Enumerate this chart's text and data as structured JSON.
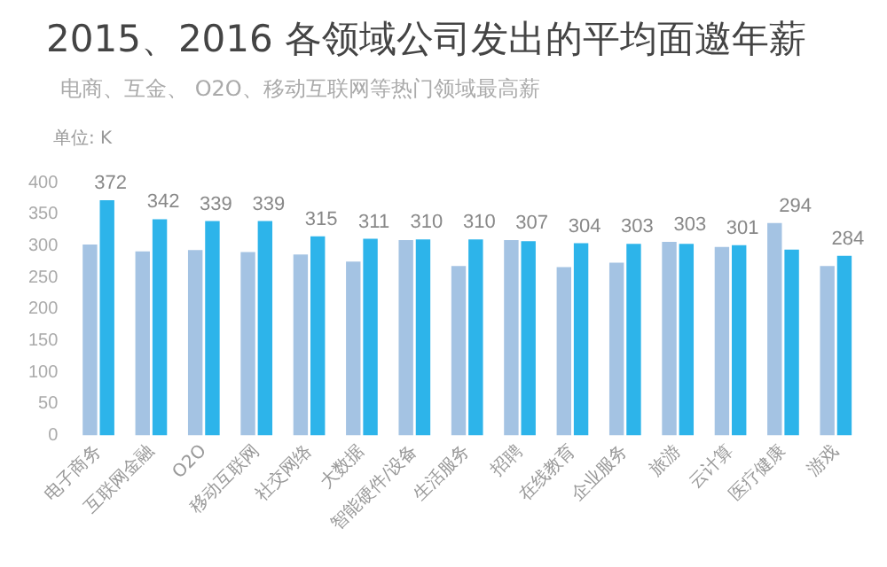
{
  "chart_data": {
    "type": "bar",
    "title": "2015、2016 各领域公司发出的平均面邀年薪",
    "subtitle": "电商、互金、 O2O、移动互联网等热门领域最高薪",
    "annotations": [
      "单位: K"
    ],
    "categories": [
      "电子商务",
      "互联网金融",
      "O2O",
      "移动互联网",
      "社交网络",
      "大数据",
      "智能硬件/设备",
      "生活服务",
      "招聘",
      "在线教育",
      "企业服务",
      "旅游",
      "云计算",
      "医疗健康",
      "游戏"
    ],
    "series": [
      {
        "color": "#a4c3e3",
        "values": [
          302,
          291,
          293,
          290,
          286,
          275,
          309,
          268,
          309,
          266,
          273,
          306,
          298,
          336,
          268
        ]
      },
      {
        "color": "#2db4ea",
        "values": [
          372,
          342,
          339,
          339,
          315,
          311,
          310,
          310,
          307,
          304,
          303,
          303,
          301,
          294,
          284
        ],
        "value_labels": [
          "372",
          "342",
          "339",
          "339",
          "315",
          "311",
          "310",
          "310",
          "307",
          "304",
          "303",
          "303",
          "301",
          "294",
          "284"
        ]
      }
    ],
    "ylim": [
      0,
      400
    ],
    "yticks": [
      0,
      50,
      100,
      150,
      200,
      250,
      300,
      350,
      400
    ],
    "grid": false,
    "legend": false
  }
}
